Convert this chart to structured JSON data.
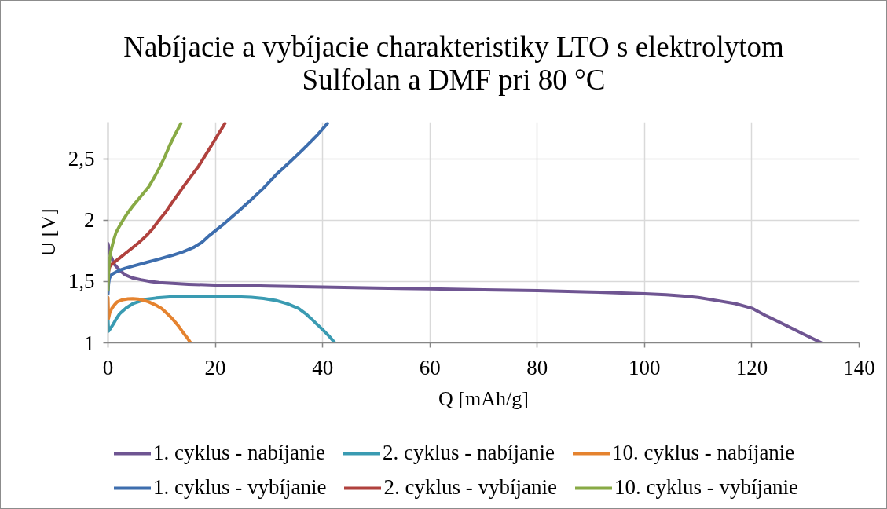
{
  "chart_data": {
    "type": "line",
    "title": "Nabíjacie a vybíjacie charakteristiky LTO s elektrolytom Sulfolan a DMF pri 80 °C",
    "xlabel": "Q [mAh/g]",
    "ylabel": "U [V]",
    "xlim": [
      0,
      140
    ],
    "ylim": [
      1,
      2.8
    ],
    "xticks": [
      0,
      20,
      40,
      60,
      80,
      100,
      120,
      140
    ],
    "yticks": [
      1,
      {
        "value": 1.5,
        "label": "1,5"
      },
      2,
      {
        "value": 2.5,
        "label": "2,5"
      }
    ],
    "grid": true,
    "legend": "bottom",
    "series": [
      {
        "name": "1. cyklus - nabíjanie",
        "color": "#6f5592",
        "x": [
          0,
          0.4,
          1.2,
          2.2,
          3.2,
          4.5,
          6.1,
          8,
          9.5,
          12,
          15,
          19.9,
          25,
          30,
          40,
          50,
          60,
          70,
          80,
          90,
          100,
          104,
          107,
          110,
          113.5,
          116.9,
          120,
          122.7,
          125.4,
          129,
          133
        ],
        "values": [
          1.81,
          1.72,
          1.64,
          1.59,
          1.555,
          1.53,
          1.515,
          1.5,
          1.492,
          1.485,
          1.478,
          1.471,
          1.467,
          1.463,
          1.455,
          1.447,
          1.44,
          1.433,
          1.426,
          1.415,
          1.4,
          1.392,
          1.383,
          1.37,
          1.345,
          1.32,
          1.283,
          1.22,
          1.163,
          1.085,
          1.0
        ]
      },
      {
        "name": "2. cyklus - nabíjanie",
        "color": "#3a9bb2",
        "x": [
          0,
          0.1,
          0.5,
          1.0,
          1.6,
          2.2,
          3.4,
          4.6,
          6,
          7.1,
          9,
          12,
          16,
          19.9,
          23,
          26.7,
          29,
          31.5,
          33.5,
          35.5,
          36.8,
          37.9,
          39,
          40,
          41.2,
          42.3
        ],
        "values": [
          1.19,
          1.095,
          1.12,
          1.154,
          1.2,
          1.239,
          1.285,
          1.319,
          1.34,
          1.355,
          1.366,
          1.376,
          1.379,
          1.38,
          1.378,
          1.372,
          1.362,
          1.344,
          1.318,
          1.281,
          1.24,
          1.196,
          1.15,
          1.108,
          1.055,
          1.0
        ]
      },
      {
        "name": "10. cyklus - nabíjanie",
        "color": "#e5832f",
        "x": [
          0,
          0.1,
          0.3,
          0.7,
          1.2,
          1.7,
          2.6,
          3.7,
          4.6,
          5.6,
          6.6,
          7.6,
          8.8,
          10,
          11,
          12,
          13,
          13.9,
          14.7,
          15.4
        ],
        "values": [
          1.37,
          1.2,
          1.24,
          1.28,
          1.31,
          1.334,
          1.35,
          1.359,
          1.36,
          1.357,
          1.348,
          1.334,
          1.31,
          1.28,
          1.24,
          1.196,
          1.145,
          1.09,
          1.045,
          1.0
        ]
      },
      {
        "name": "1. cyklus - vybíjanie",
        "color": "#3e6eae",
        "x": [
          0,
          0.1,
          0.25,
          0.5,
          1,
          2,
          3.2,
          5,
          7.1,
          9.5,
          12,
          14,
          15.9,
          17.5,
          18.8,
          20.3,
          21.8,
          24,
          26.7,
          29,
          31.5,
          34,
          36.4,
          38.8,
          40.9
        ],
        "values": [
          1.4,
          1.48,
          1.524,
          1.55,
          1.566,
          1.59,
          1.608,
          1.63,
          1.655,
          1.683,
          1.714,
          1.742,
          1.777,
          1.82,
          1.872,
          1.925,
          1.978,
          2.062,
          2.168,
          2.263,
          2.379,
          2.48,
          2.58,
          2.685,
          2.79
        ]
      },
      {
        "name": "2. cyklus - vybíjanie",
        "color": "#b0413d",
        "x": [
          0,
          0.1,
          0.3,
          0.8,
          1.4,
          2.2,
          3.4,
          4.6,
          5.8,
          7.1,
          8.3,
          9.5,
          10.8,
          12,
          14.4,
          16.9,
          19.3,
          21.8
        ],
        "values": [
          1.5,
          1.58,
          1.62,
          1.645,
          1.665,
          1.693,
          1.735,
          1.777,
          1.82,
          1.872,
          1.93,
          2.0,
          2.07,
          2.147,
          2.295,
          2.442,
          2.611,
          2.79
        ]
      },
      {
        "name": "10. cyklus - vybíjanie",
        "color": "#88aa45",
        "x": [
          0,
          0.1,
          0.25,
          0.5,
          1,
          1.5,
          2.2,
          3,
          3.7,
          4.6,
          5.6,
          6.6,
          7.6,
          8.5,
          9.5,
          10.5,
          11.5,
          12.5,
          13.6
        ],
        "values": [
          1.43,
          1.58,
          1.661,
          1.74,
          1.83,
          1.9,
          1.957,
          2.015,
          2.062,
          2.115,
          2.168,
          2.22,
          2.273,
          2.34,
          2.421,
          2.51,
          2.611,
          2.7,
          2.79
        ]
      }
    ]
  }
}
